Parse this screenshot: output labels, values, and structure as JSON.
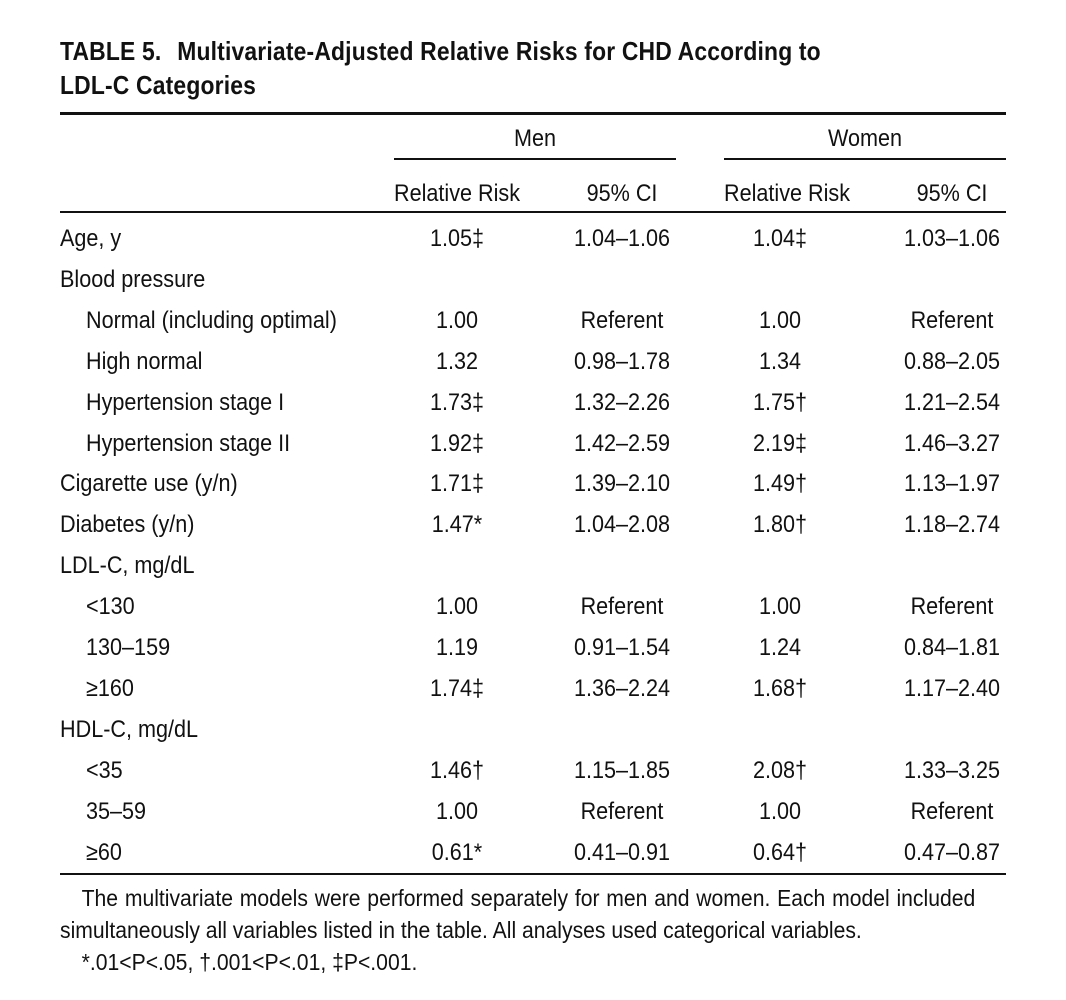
{
  "table": {
    "label": "TABLE 5.",
    "title": "Multivariate-Adjusted Relative Risks for CHD According to LDL-C Categories",
    "title_line1": "Multivariate-Adjusted Relative Risks for CHD According to",
    "title_line2": "LDL-C Categories",
    "groups": [
      "Men",
      "Women"
    ],
    "columns": [
      "Relative Risk",
      "95% CI",
      "Relative Risk",
      "95% CI"
    ],
    "rows": [
      {
        "label": "Age, y",
        "indent": false,
        "cells": [
          "1.05‡",
          "1.04–1.06",
          "1.04‡",
          "1.03–1.06"
        ]
      },
      {
        "label": "Blood pressure",
        "indent": false,
        "cells": [
          "",
          "",
          "",
          ""
        ]
      },
      {
        "label": "Normal (including optimal)",
        "indent": true,
        "cells": [
          "1.00",
          "Referent",
          "1.00",
          "Referent"
        ]
      },
      {
        "label": "High normal",
        "indent": true,
        "cells": [
          "1.32",
          "0.98–1.78",
          "1.34",
          "0.88–2.05"
        ]
      },
      {
        "label": "Hypertension stage I",
        "indent": true,
        "cells": [
          "1.73‡",
          "1.32–2.26",
          "1.75†",
          "1.21–2.54"
        ]
      },
      {
        "label": "Hypertension stage II",
        "indent": true,
        "cells": [
          "1.92‡",
          "1.42–2.59",
          "2.19‡",
          "1.46–3.27"
        ]
      },
      {
        "label": "Cigarette use (y/n)",
        "indent": false,
        "cells": [
          "1.71‡",
          "1.39–2.10",
          "1.49†",
          "1.13–1.97"
        ]
      },
      {
        "label": "Diabetes (y/n)",
        "indent": false,
        "cells": [
          "1.47*",
          "1.04–2.08",
          "1.80†",
          "1.18–2.74"
        ]
      },
      {
        "label": "LDL-C, mg/dL",
        "indent": false,
        "cells": [
          "",
          "",
          "",
          ""
        ]
      },
      {
        "label": "<130",
        "indent": true,
        "cells": [
          "1.00",
          "Referent",
          "1.00",
          "Referent"
        ]
      },
      {
        "label": "130–159",
        "indent": true,
        "cells": [
          "1.19",
          "0.91–1.54",
          "1.24",
          "0.84–1.81"
        ]
      },
      {
        "label": "≥160",
        "indent": true,
        "cells": [
          "1.74‡",
          "1.36–2.24",
          "1.68†",
          "1.17–2.40"
        ]
      },
      {
        "label": "HDL-C, mg/dL",
        "indent": false,
        "cells": [
          "",
          "",
          "",
          ""
        ]
      },
      {
        "label": "<35",
        "indent": true,
        "cells": [
          "1.46†",
          "1.15–1.85",
          "2.08†",
          "1.33–3.25"
        ]
      },
      {
        "label": "35–59",
        "indent": true,
        "cells": [
          "1.00",
          "Referent",
          "1.00",
          "Referent"
        ]
      },
      {
        "label": "≥60",
        "indent": true,
        "cells": [
          "0.61*",
          "0.41–0.91",
          "0.64†",
          "0.47–0.87"
        ]
      }
    ],
    "footnote_line1": "The multivariate models were performed separately for men and women. Each model included",
    "footnote_line2": "simultaneously all variables listed in the table. All analyses used categorical variables.",
    "footnote_line3": "*.01<P<.05, †.001<P<.01, ‡P<.001."
  }
}
